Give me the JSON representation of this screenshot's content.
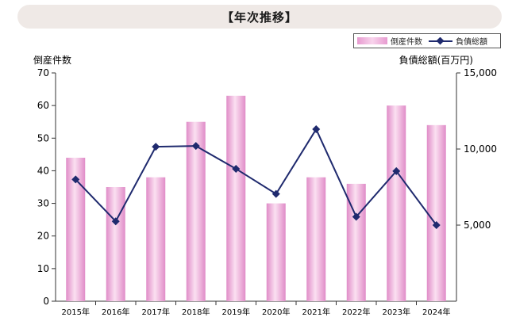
{
  "title": "【年次推移】",
  "legend": {
    "bars": "倒産件数",
    "line": "負債総額"
  },
  "chart_data": {
    "type": "bar",
    "title": "【年次推移】",
    "categories": [
      "2015年",
      "2016年",
      "2017年",
      "2018年",
      "2019年",
      "2020年",
      "2021年",
      "2022年",
      "2023年",
      "2024年"
    ],
    "ylabel": "倒産件数",
    "y2label": "負債総額(百万円)",
    "ylim": [
      0,
      70
    ],
    "y2lim": [
      0,
      15000
    ],
    "yticks": [
      "0",
      "10",
      "20",
      "30",
      "40",
      "50",
      "60",
      "70"
    ],
    "y2ticks": [
      "5,000",
      "10,000",
      "15,000"
    ],
    "series": [
      {
        "name": "倒産件数",
        "type": "bar",
        "axis": "left",
        "color": "#e79ad0",
        "values": [
          44,
          35,
          38,
          55,
          63,
          30,
          38,
          36,
          60,
          54
        ]
      },
      {
        "name": "負債総額",
        "type": "line",
        "axis": "right",
        "color": "#1f2a6e",
        "marker": "diamond",
        "values": [
          8000,
          5250,
          10150,
          10200,
          8700,
          7050,
          11300,
          5550,
          8550,
          5000
        ]
      }
    ],
    "grid": false,
    "legend_position": "top-right"
  }
}
